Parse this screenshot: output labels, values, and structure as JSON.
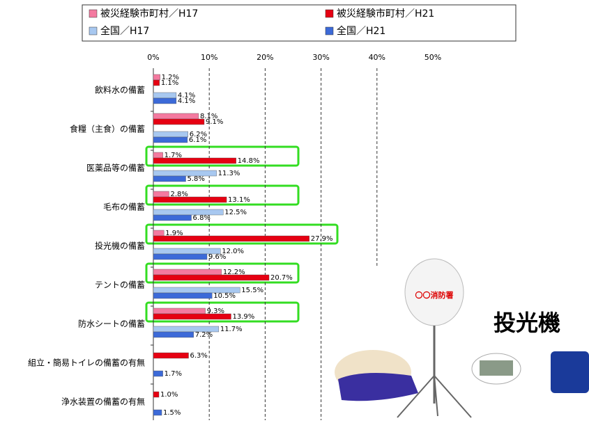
{
  "chart_data": {
    "type": "hbar",
    "categories": [
      "飲料水の備蓄",
      "食糧（主食）の備蓄",
      "医薬品等の備蓄",
      "毛布の備蓄",
      "投光機の備蓄",
      "テントの備蓄",
      "防水シートの備蓄",
      "組立・簡易トイレの備蓄の有無",
      "浄水装置の備蓄の有無"
    ],
    "series": [
      {
        "name": "被災経験市町村／H17",
        "color": "#f47aa0",
        "values": [
          1.2,
          8.1,
          1.7,
          2.8,
          1.9,
          12.2,
          9.3,
          null,
          null
        ],
        "value_labels": [
          "1.2%",
          "8.1%",
          "1.7%",
          "2.8%",
          "1.9%",
          "12.2%",
          "9.3%",
          null,
          null
        ]
      },
      {
        "name": "被災経験市町村／H21",
        "color": "#e60012",
        "values": [
          1.1,
          9.1,
          14.8,
          13.1,
          27.9,
          20.7,
          13.9,
          6.3,
          1.0
        ],
        "value_labels": [
          "1.1%",
          "9.1%",
          "14.8%",
          "13.1%",
          "27.9%",
          "20.7%",
          "13.9%",
          "6.3%",
          "1.0%"
        ]
      },
      {
        "name": "全国／H17",
        "color": "#a8c8f0",
        "values": [
          4.1,
          6.2,
          11.3,
          12.5,
          12.0,
          15.5,
          11.7,
          null,
          null
        ],
        "value_labels": [
          "4.1%",
          "6.2%",
          "11.3%",
          "12.5%",
          "12.0%",
          "15.5%",
          "11.7%",
          null,
          null
        ]
      },
      {
        "name": "全国／H21",
        "color": "#3c6ad8",
        "values": [
          4.1,
          6.1,
          5.8,
          6.8,
          9.6,
          10.5,
          7.2,
          1.7,
          1.5
        ],
        "value_labels": [
          "4.1%",
          "6.1%",
          "5.8%",
          "6.8%",
          "9.6%",
          "10.5%",
          "7.2%",
          "1.7%",
          "1.5%"
        ]
      }
    ],
    "xlim": [
      0,
      50
    ],
    "xticks": [
      {
        "value": 0,
        "label": "0%"
      },
      {
        "value": 10,
        "label": "10%"
      },
      {
        "value": 20,
        "label": "20%"
      },
      {
        "value": 30,
        "label": "30%"
      },
      {
        "value": 40,
        "label": "40%"
      },
      {
        "value": 50,
        "label": "50%"
      }
    ],
    "grid": true,
    "annotations": [
      "〇〇消防署",
      "投光機"
    ]
  }
}
